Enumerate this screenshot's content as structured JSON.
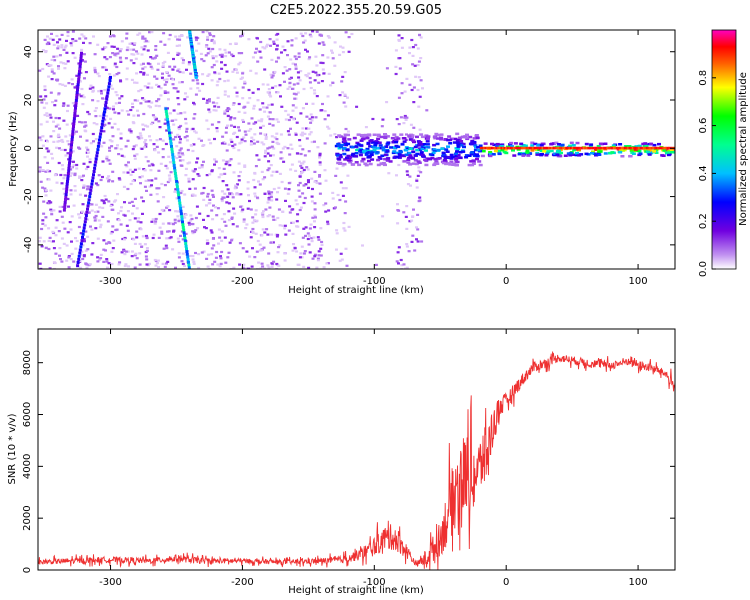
{
  "figure_title": "C2E5.2022.355.20.59.G05",
  "colors": {
    "snr_line": "#ee3030",
    "axis": "#000000",
    "scatter_light": "#d6b4f6",
    "scatter_mid": "#9b5cf0",
    "scatter_dark": "#6a0ae6"
  },
  "chart_data": [
    {
      "type": "heatmap",
      "title": "",
      "xlabel": "Height of straight line (km)",
      "ylabel": "Frequency (Hz)",
      "xlim": [
        -355,
        128
      ],
      "ylim": [
        -50,
        49
      ],
      "x_ticks": [
        -300,
        -200,
        -100,
        0,
        100
      ],
      "y_ticks": [
        -40,
        -20,
        0,
        20,
        40
      ],
      "colorbar": {
        "label": "Normalized spectral amplitude",
        "range": [
          0,
          1
        ],
        "ticks": [
          "0.0",
          "0.2",
          "0.4",
          "0.6",
          "0.8"
        ],
        "colormap": "rainbow (white - purple - blue - cyan - green - yellow - red - magenta)"
      },
      "features": [
        {
          "desc": "carrier line near 0 Hz, strong",
          "x": [
            -20,
            128
          ],
          "freq": 0,
          "amplitude": 0.95
        },
        {
          "desc": "noisy carrier near 0 Hz",
          "x": [
            -130,
            -20
          ],
          "freq": 0,
          "amplitude": 0.45
        },
        {
          "desc": "diagonal streak",
          "x": [
            -258,
            -240
          ],
          "freq": [
            17,
            -50
          ],
          "amplitude": 0.45
        },
        {
          "desc": "diagonal streak",
          "x": [
            -240,
            -235
          ],
          "freq": [
            49,
            30
          ],
          "amplitude": 0.4
        },
        {
          "desc": "diagonal streak",
          "x": [
            -325,
            -300
          ],
          "freq": [
            -48,
            30
          ],
          "amplitude": 0.25
        },
        {
          "desc": "diagonal streak",
          "x": [
            -335,
            -322
          ],
          "freq": [
            -25,
            40
          ],
          "amplitude": 0.2
        },
        {
          "desc": "background noise speckle",
          "x": [
            -355,
            -60
          ],
          "freq": [
            -50,
            49
          ],
          "amplitude": 0.1
        }
      ]
    },
    {
      "type": "line",
      "title": "",
      "xlabel": "Height of straight line (km)",
      "ylabel": "SNR (10 * v/v)",
      "xlim": [
        -355,
        128
      ],
      "ylim": [
        0,
        9300
      ],
      "x_ticks": [
        -300,
        -200,
        -100,
        0,
        100
      ],
      "y_ticks": [
        0,
        2000,
        4000,
        6000,
        8000
      ],
      "series": [
        {
          "x": [
            -355,
            -330,
            -300,
            -270,
            -250,
            -230,
            -200,
            -170,
            -140,
            -125,
            -110,
            -100,
            -92,
            -85,
            -75,
            -68,
            -60,
            -50,
            -45,
            -40,
            -35,
            -30,
            -25,
            -20,
            -15,
            -10,
            -5,
            0,
            10,
            20,
            30,
            40,
            60,
            80,
            95,
            100,
            110,
            120,
            125,
            128
          ],
          "y": [
            300,
            350,
            400,
            350,
            450,
            350,
            350,
            300,
            350,
            400,
            600,
            900,
            1200,
            1300,
            700,
            200,
            500,
            1200,
            2000,
            2800,
            3500,
            3800,
            3500,
            4000,
            4500,
            5500,
            6300,
            6500,
            7200,
            7800,
            8000,
            8200,
            8000,
            7900,
            8100,
            7900,
            7800,
            7600,
            7300,
            7000
          ],
          "noise": [
            200,
            250,
            250,
            250,
            300,
            250,
            200,
            200,
            250,
            300,
            500,
            800,
            1000,
            1200,
            600,
            150,
            800,
            1500,
            2500,
            3000,
            3500,
            3500,
            3000,
            2500,
            2500,
            1800,
            1000,
            700,
            600,
            450,
            400,
            350,
            350,
            350,
            400,
            400,
            350,
            350,
            500,
            500
          ]
        }
      ]
    }
  ]
}
